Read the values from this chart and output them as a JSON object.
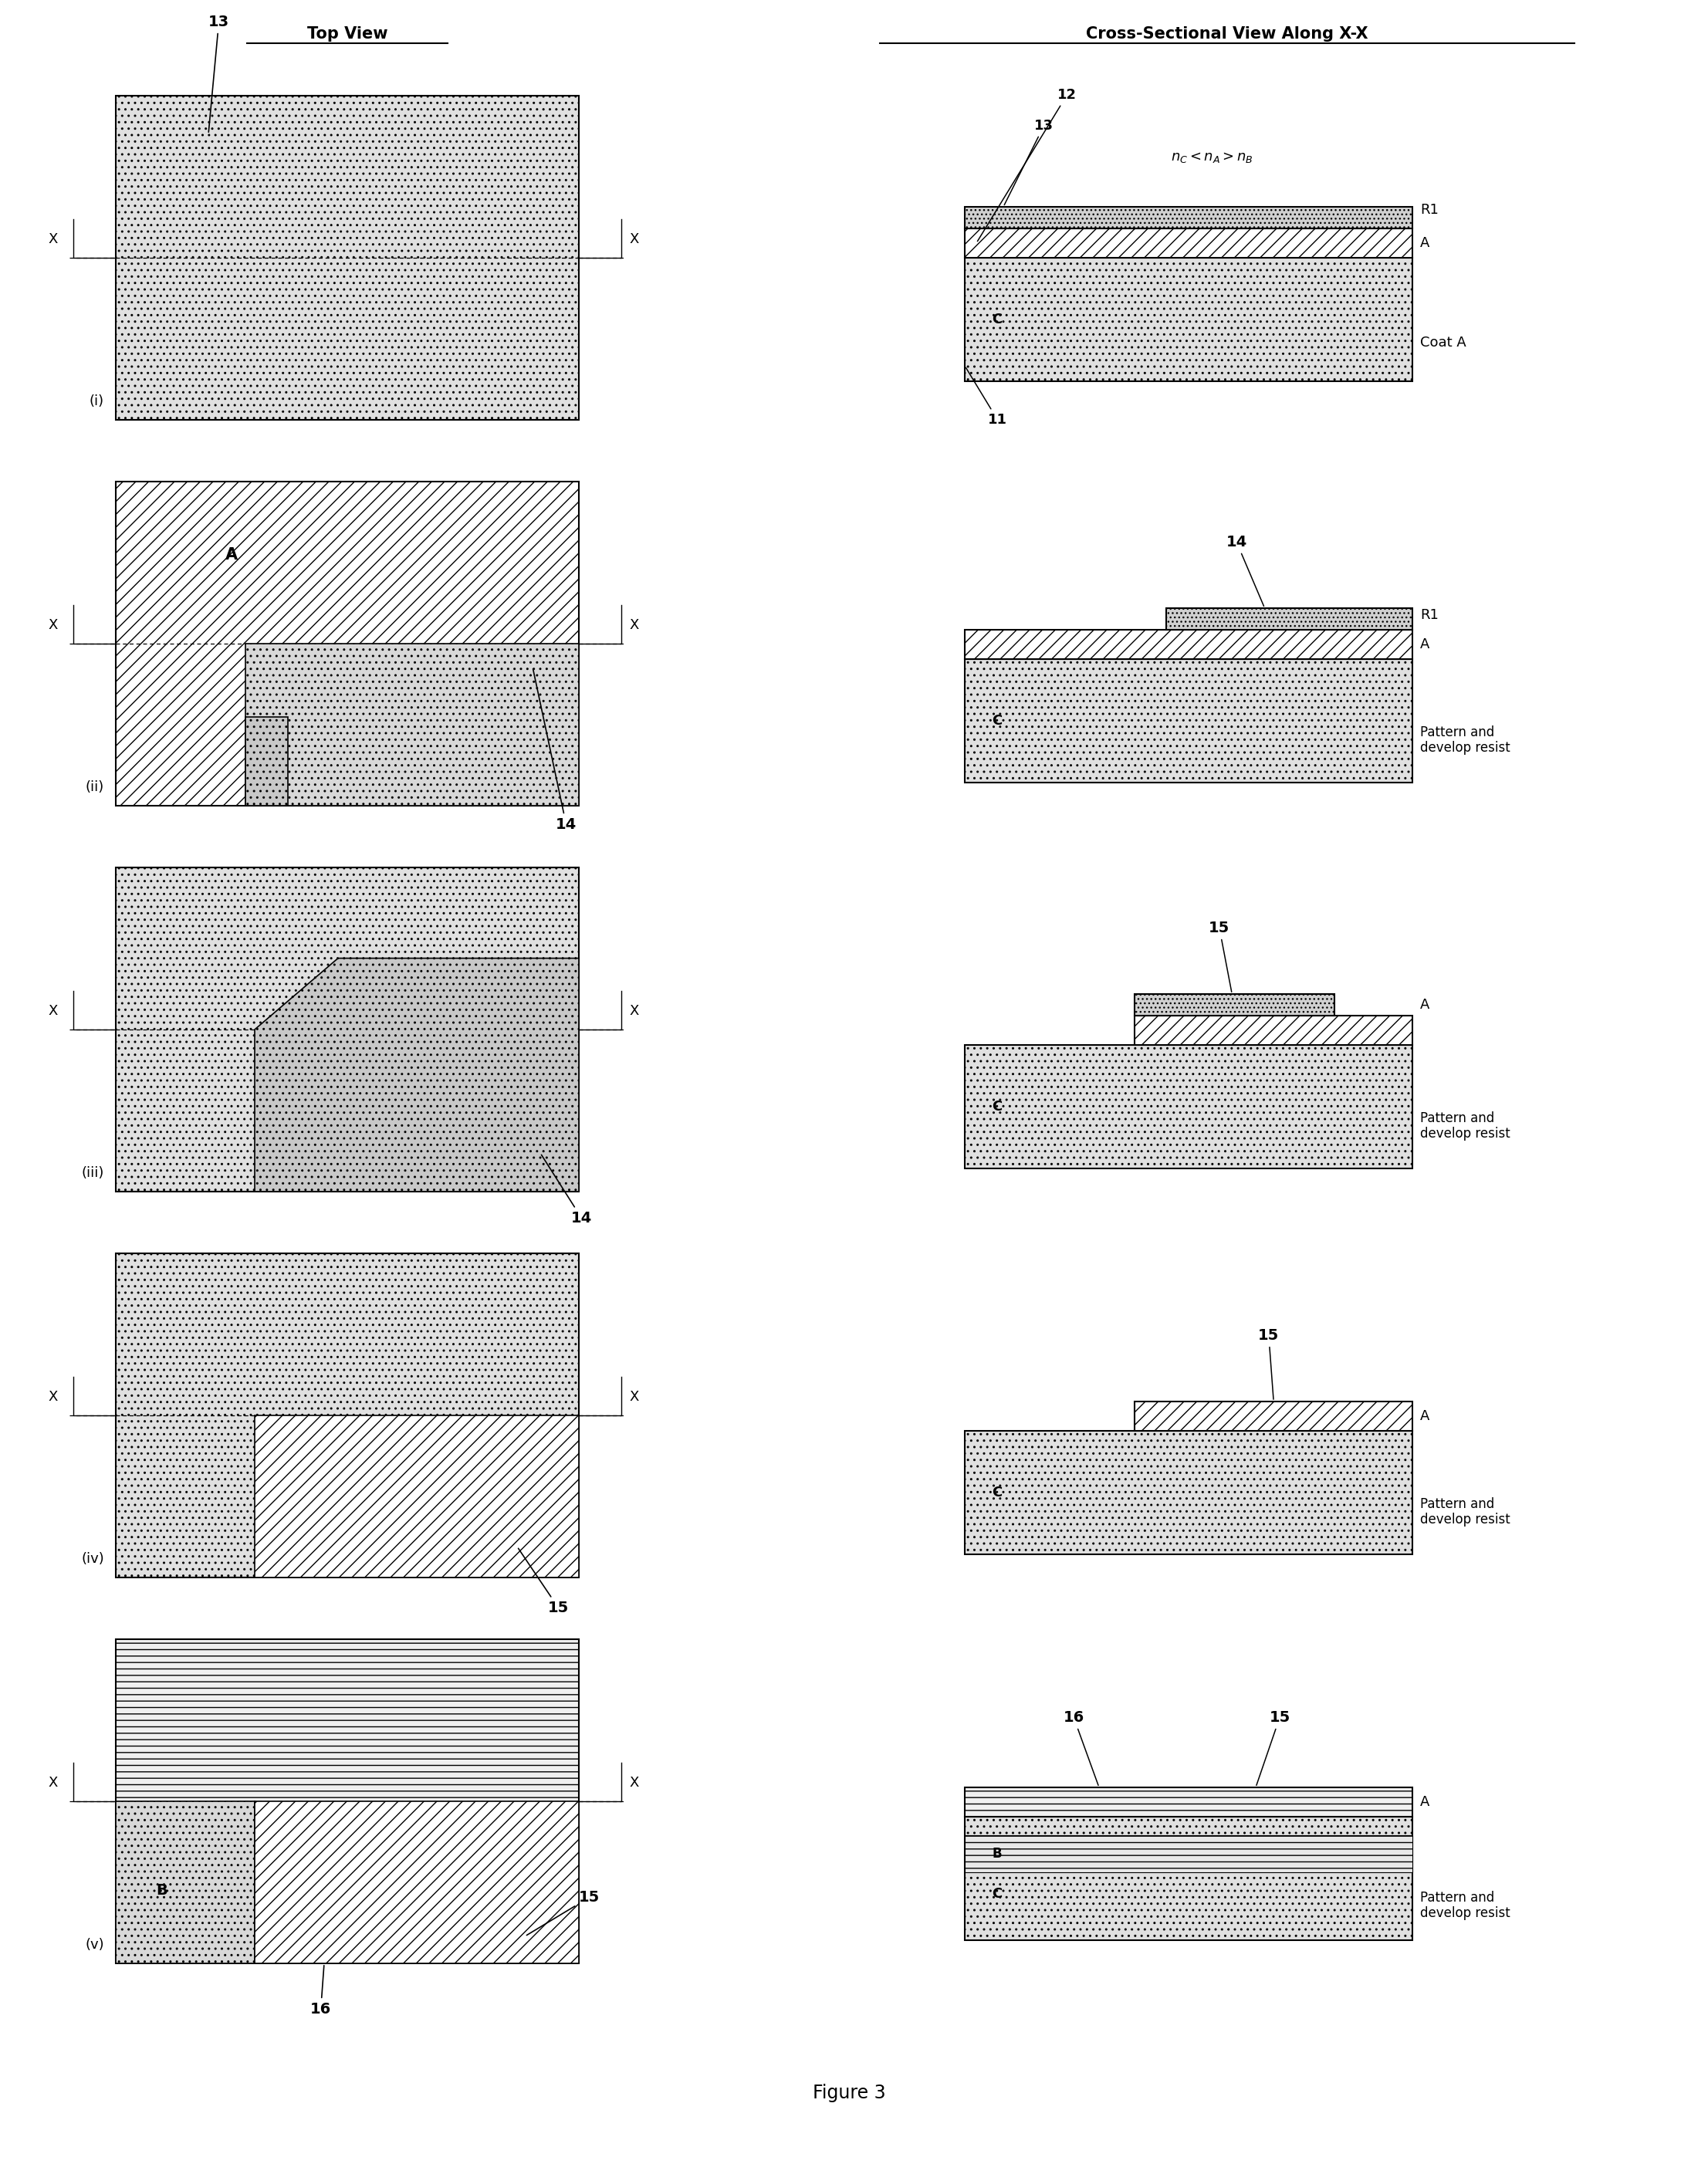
{
  "title": "Figure 3",
  "top_view_title": "Top View",
  "cross_section_title": "Cross-Sectional View Along X-X",
  "bg": "#ffffff",
  "rows": [
    "(i)",
    "(ii)",
    "(iii)",
    "(iv)",
    "(v)"
  ],
  "font_size": 13,
  "title_font_size": 15
}
